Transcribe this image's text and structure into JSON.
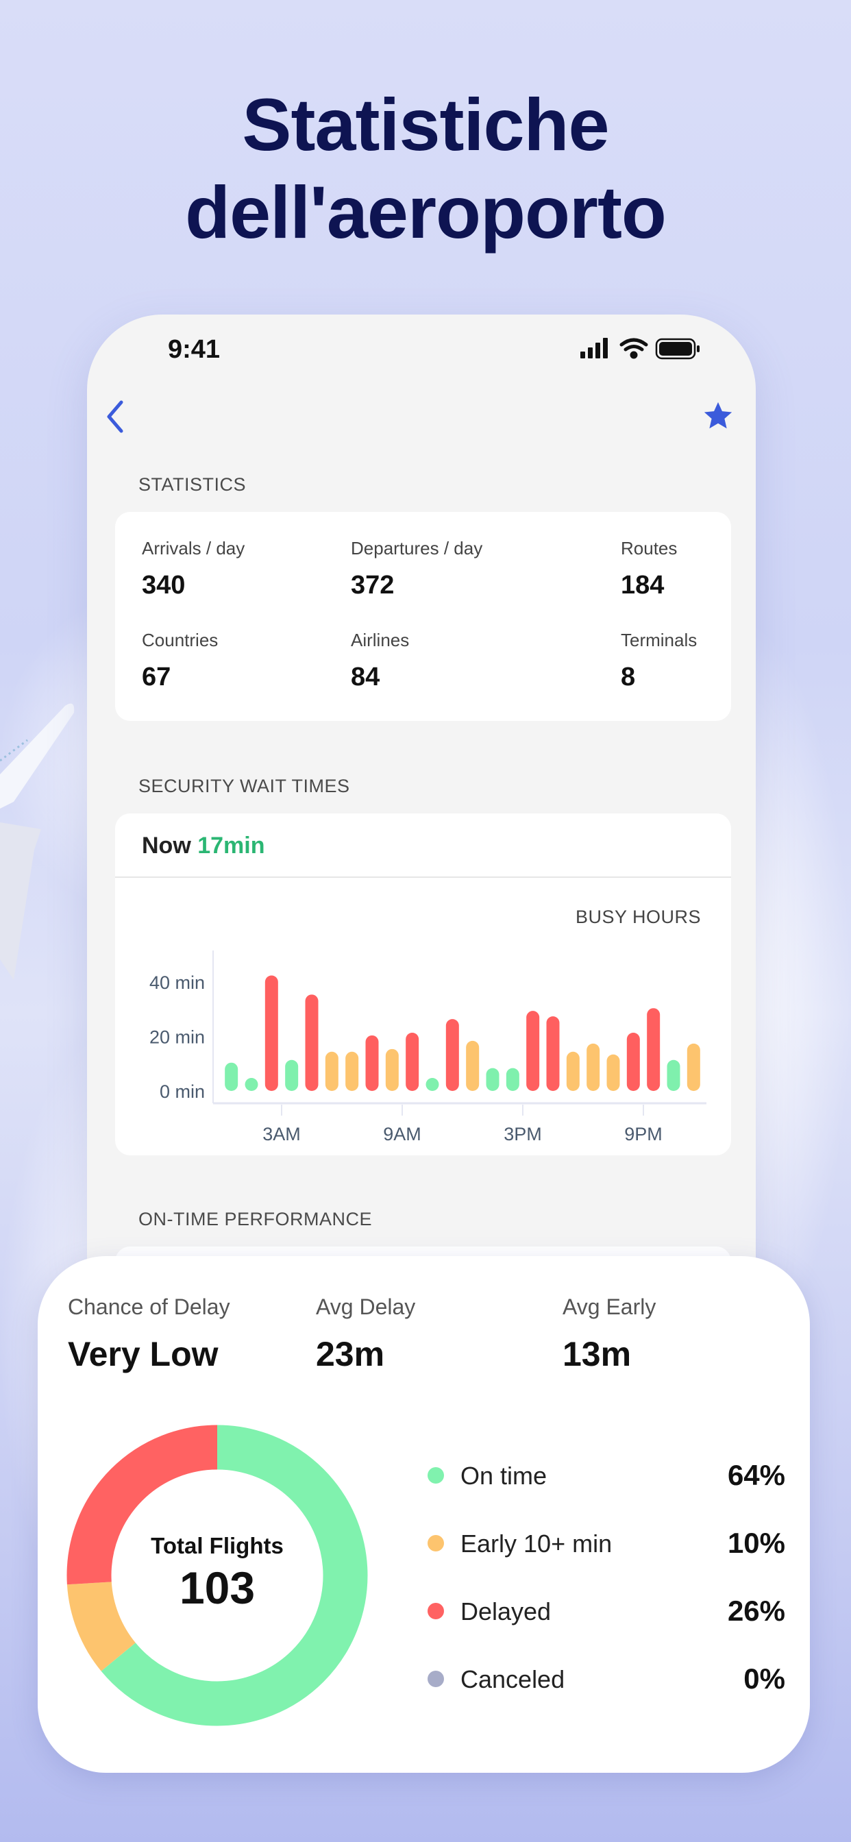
{
  "headline": {
    "line1": "Statistiche",
    "line2": "dell'aeroporto"
  },
  "status_bar": {
    "time": "9:41"
  },
  "nav": {
    "back_icon": "chevron-left-icon",
    "favorite_icon": "star-icon",
    "accent": "#3b5bdb"
  },
  "statistics": {
    "section_title": "STATISTICS",
    "items": [
      {
        "label": "Arrivals / day",
        "value": "340"
      },
      {
        "label": "Departures / day",
        "value": "372"
      },
      {
        "label": "Routes",
        "value": "184"
      },
      {
        "label": "Countries",
        "value": "67"
      },
      {
        "label": "Airlines",
        "value": "84"
      },
      {
        "label": "Terminals",
        "value": "8"
      }
    ]
  },
  "security": {
    "section_title": "SECURITY WAIT TIMES",
    "now_label": "Now",
    "now_value": "17min",
    "now_color": "#2bb673"
  },
  "chart_data": {
    "type": "bar",
    "title": "BUSY HOURS",
    "ylim": [
      0,
      40
    ],
    "yticks": [
      "0 min",
      "20 min",
      "40 min"
    ],
    "xticks": [
      {
        "label": "3AM",
        "hour": 3
      },
      {
        "label": "9AM",
        "hour": 9
      },
      {
        "label": "3PM",
        "hour": 15
      },
      {
        "label": "9PM",
        "hour": 21
      }
    ],
    "categories": [
      0,
      1,
      2,
      3,
      4,
      5,
      6,
      7,
      8,
      9,
      10,
      11,
      12,
      13,
      14,
      15,
      16,
      17,
      18,
      19,
      20,
      21,
      22,
      23
    ],
    "values": [
      8,
      2,
      40,
      9,
      33,
      12,
      12,
      18,
      13,
      19,
      2,
      24,
      16,
      6,
      6,
      27,
      25,
      12,
      15,
      11,
      19,
      28,
      9,
      15
    ],
    "levels": [
      "low",
      "low",
      "high",
      "low",
      "high",
      "mid",
      "mid",
      "high",
      "mid",
      "high",
      "low",
      "high",
      "mid",
      "low",
      "low",
      "high",
      "high",
      "mid",
      "mid",
      "mid",
      "high",
      "high",
      "low",
      "mid"
    ],
    "colors": {
      "low": "#7ff0ad",
      "mid": "#fdc46e",
      "high": "#ff5f5f"
    }
  },
  "on_time": {
    "section_title": "ON-TIME PERFORMANCE",
    "summary": [
      {
        "label": "Chance of Delay",
        "value": "Very Low"
      },
      {
        "label": "Avg Delay",
        "value": "23m"
      },
      {
        "label": "Avg Early",
        "value": "13m"
      }
    ],
    "total_label": "Total Flights",
    "total_value": "103",
    "breakdown": [
      {
        "label": "On time",
        "percent": "64%",
        "share": 64,
        "color": "#80f2ae"
      },
      {
        "label": "Early 10+ min",
        "percent": "10%",
        "share": 10,
        "color": "#fdc46e"
      },
      {
        "label": "Delayed",
        "percent": "26%",
        "share": 26,
        "color": "#ff6262"
      },
      {
        "label": "Canceled",
        "percent": "0%",
        "share": 0,
        "color": "#a7acc8"
      }
    ]
  }
}
